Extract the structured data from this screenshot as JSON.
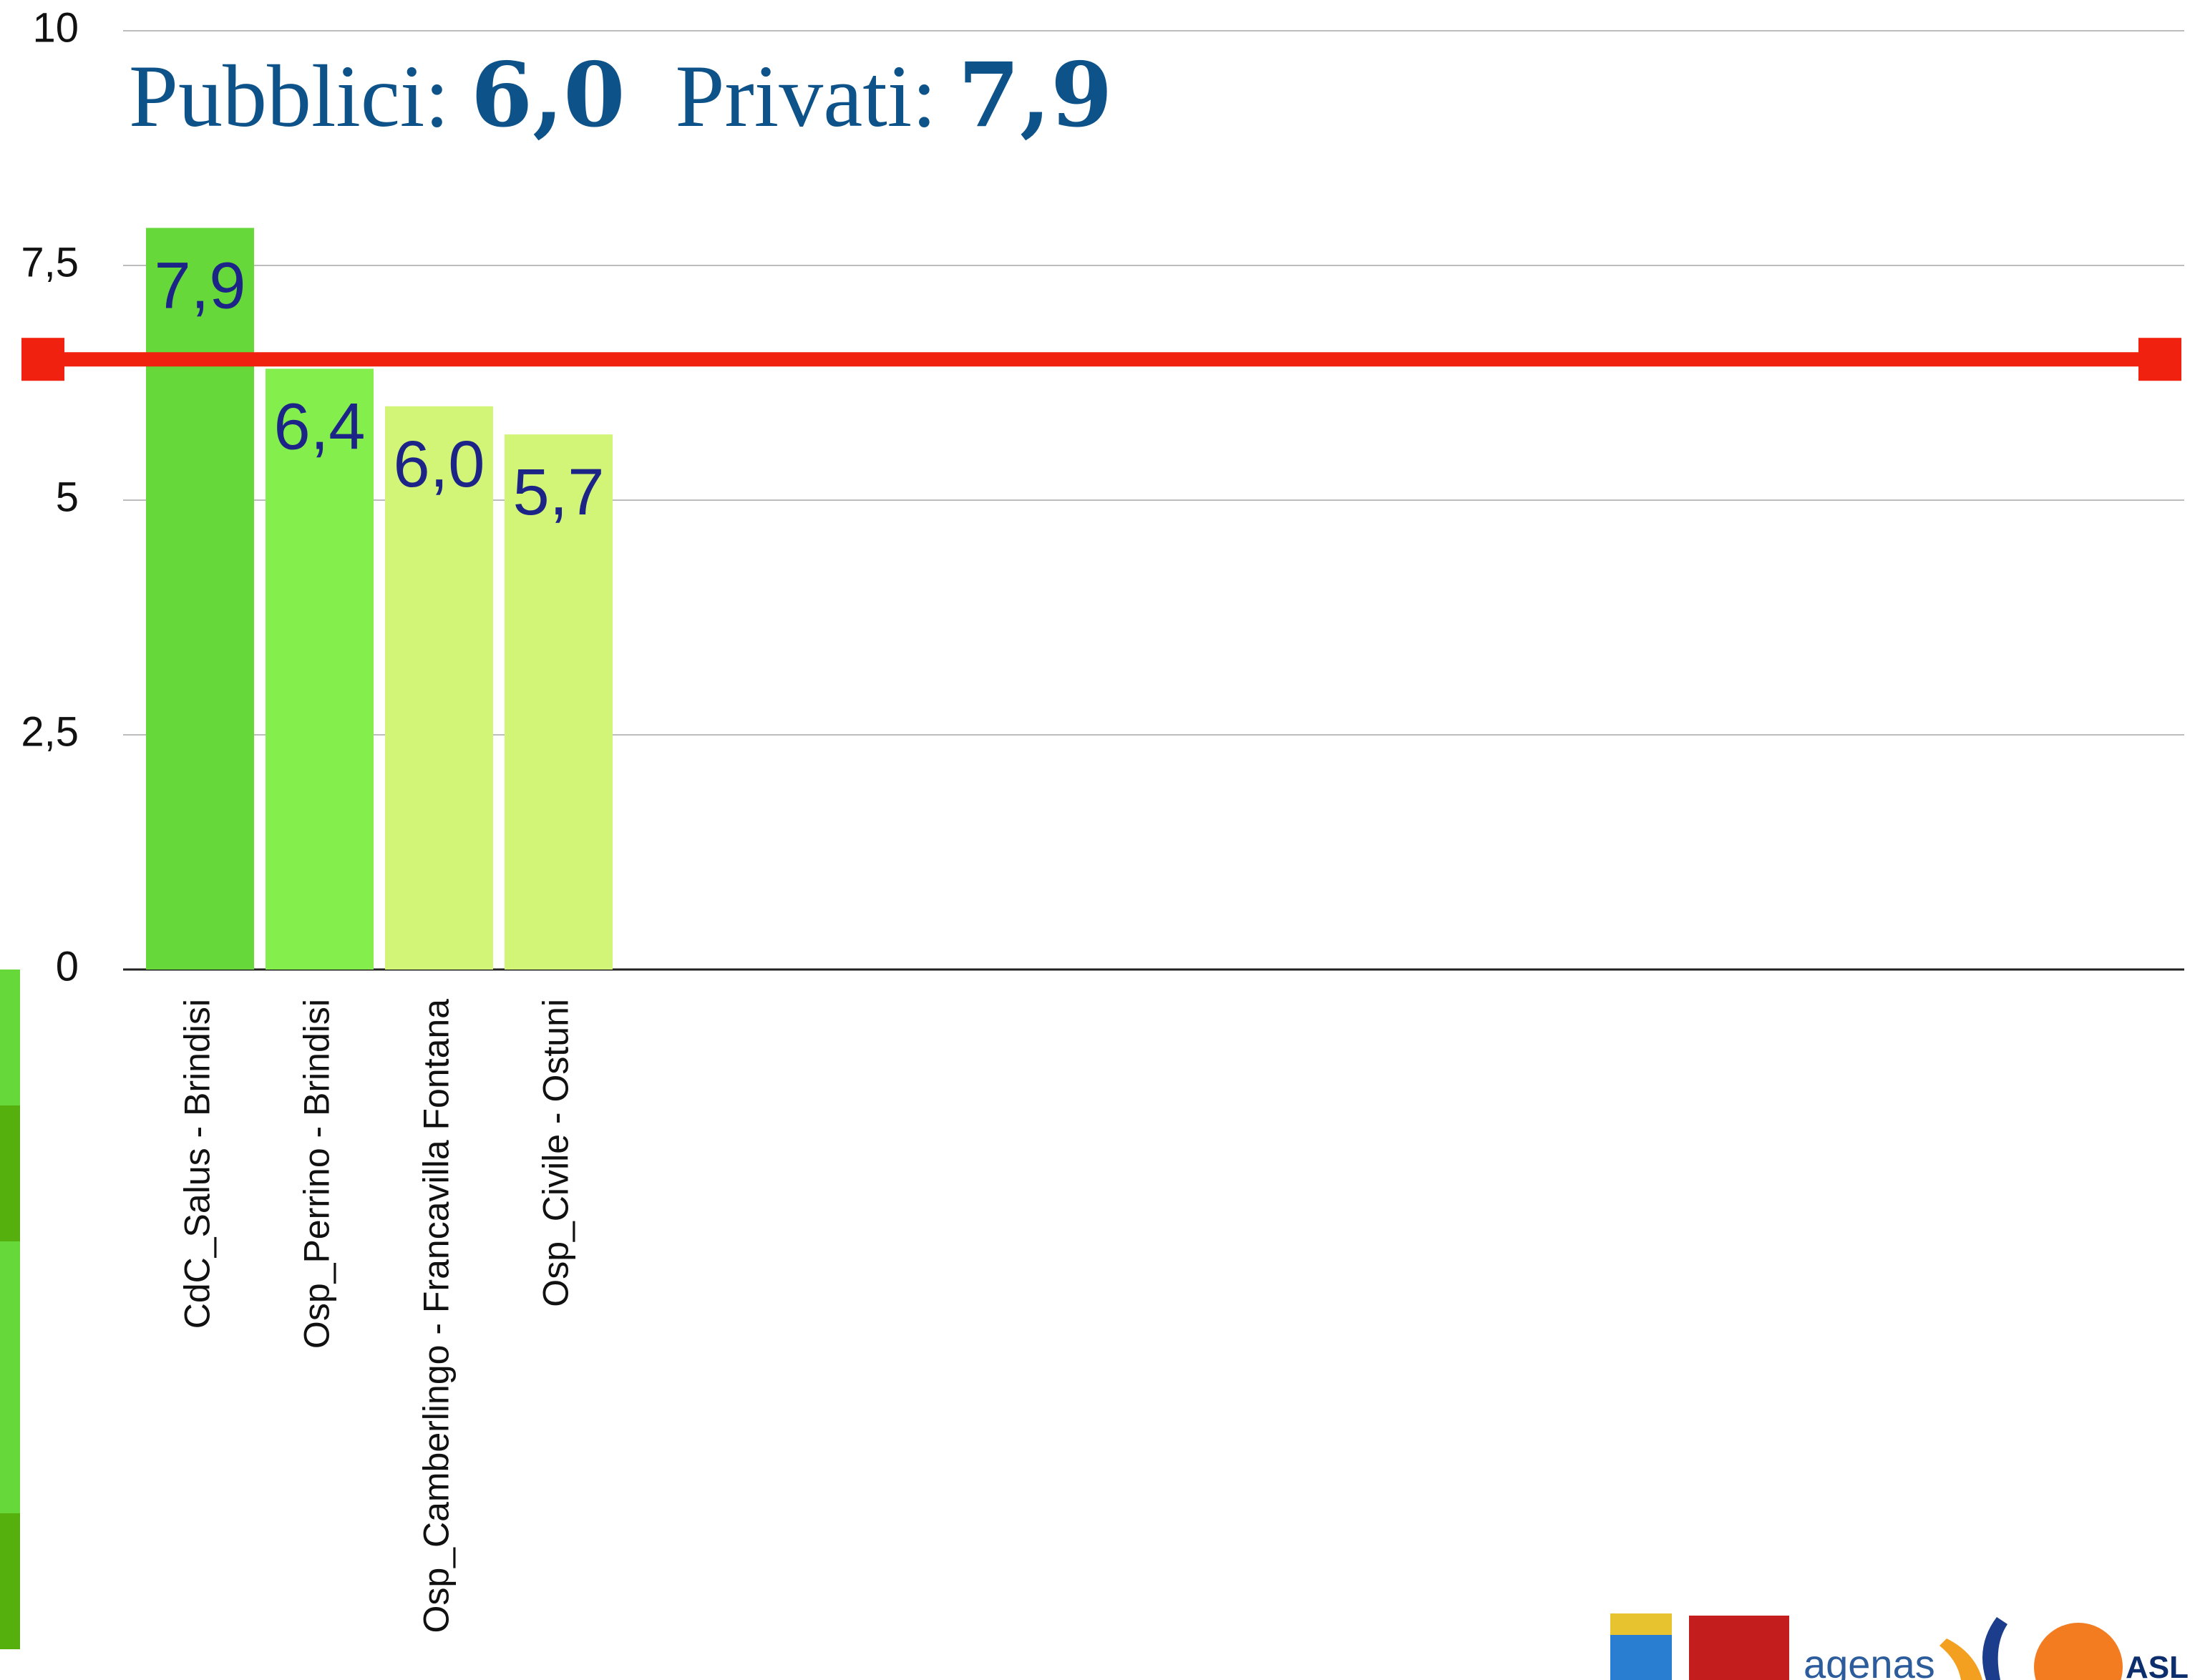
{
  "chart_data": {
    "type": "bar",
    "title": [
      "Pubblici:",
      "6,0",
      "Privati:",
      "7,9"
    ],
    "categories": [
      "CdC_Salus - Brindisi",
      "Osp_Perrino - Brindisi",
      "Osp_Camberlingo - Francavilla Fontana",
      "Osp_Civile - Ostuni"
    ],
    "values": [
      7.9,
      6.4,
      6.0,
      5.7
    ],
    "value_labels": [
      "7,9",
      "6,4",
      "6,0",
      "5,7"
    ],
    "colors": [
      "#66d83a",
      "#84ee4c",
      "#d2f577",
      "#d2f577"
    ],
    "reference_line": {
      "value": 6.5,
      "color": "#f0220f"
    },
    "ylim": [
      0,
      10
    ],
    "yticks": [
      0,
      {
        "value": 2.5,
        "label": "2,5"
      },
      5,
      {
        "value": 7.5,
        "label": "7,5"
      },
      10
    ],
    "grid": true
  },
  "logos": [
    "agenas",
    "ASL"
  ]
}
